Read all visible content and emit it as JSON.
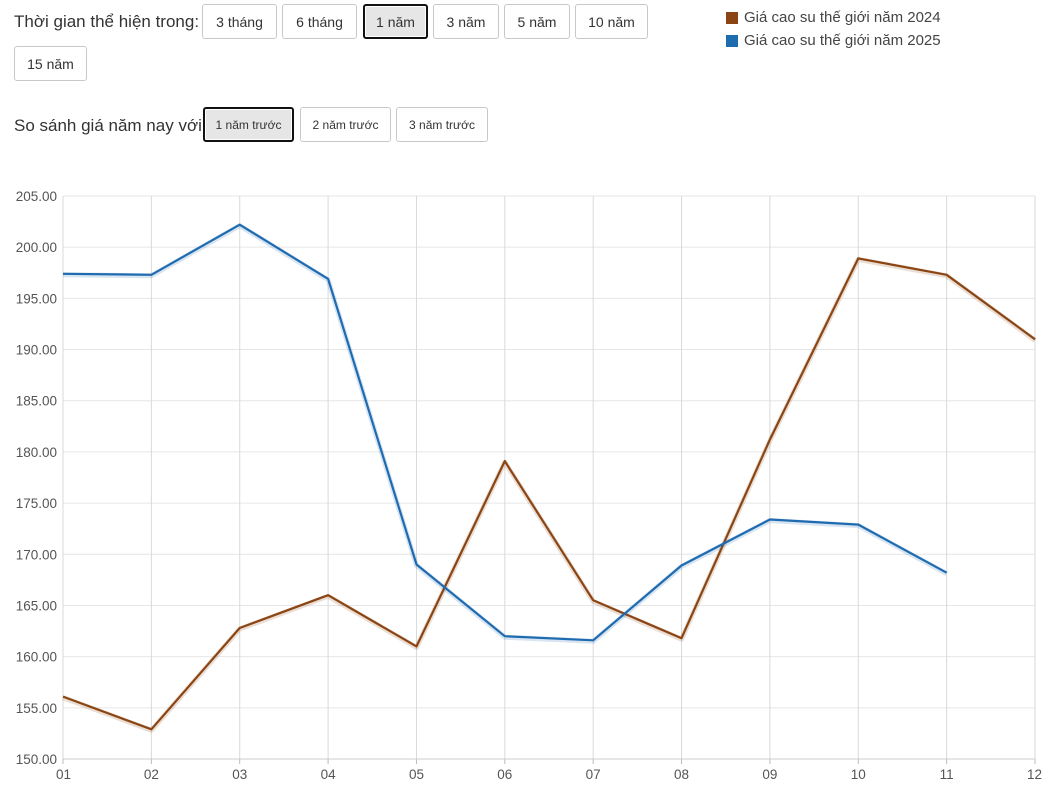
{
  "controls": {
    "period_label": "Thời gian thể hiện trong:",
    "period_buttons": [
      {
        "label": "3 tháng",
        "active": false
      },
      {
        "label": "6 tháng",
        "active": false
      },
      {
        "label": "1 năm",
        "active": true
      },
      {
        "label": "3 năm",
        "active": false
      },
      {
        "label": "5 năm",
        "active": false
      },
      {
        "label": "10 năm",
        "active": false
      },
      {
        "label": "15 năm",
        "active": false
      }
    ],
    "compare_label": "So sánh giá năm nay với:",
    "compare_buttons": [
      {
        "label": "1 năm trước",
        "active": true
      },
      {
        "label": "2 năm trước",
        "active": false
      },
      {
        "label": "3 năm trước",
        "active": false
      }
    ]
  },
  "colors": {
    "series_2024": "#8B4513",
    "series_2025": "#1F6BB0",
    "grid": "#e6e6e6",
    "vgrid": "#d9d9d9"
  },
  "chart_data": {
    "type": "line",
    "categories": [
      "01",
      "02",
      "03",
      "04",
      "05",
      "06",
      "07",
      "08",
      "09",
      "10",
      "11",
      "12"
    ],
    "ylim": [
      150,
      205
    ],
    "yticks": [
      "205.00",
      "200.00",
      "195.00",
      "190.00",
      "185.00",
      "180.00",
      "175.00",
      "170.00",
      "165.00",
      "160.00",
      "155.00",
      "150.00"
    ],
    "grid": true,
    "legend_position": "top-right",
    "series": [
      {
        "name": "Giá cao su thế giới năm 2024",
        "color_key": "series_2024",
        "values": [
          156.1,
          152.9,
          162.8,
          166.0,
          161.0,
          179.1,
          165.5,
          161.8,
          181.2,
          198.9,
          197.3,
          191.0
        ]
      },
      {
        "name": "Giá cao su thế giới năm 2025",
        "color_key": "series_2025",
        "values": [
          197.4,
          197.3,
          202.2,
          196.9,
          169.0,
          162.0,
          161.6,
          168.9,
          173.4,
          172.9,
          168.2,
          null
        ]
      }
    ]
  }
}
